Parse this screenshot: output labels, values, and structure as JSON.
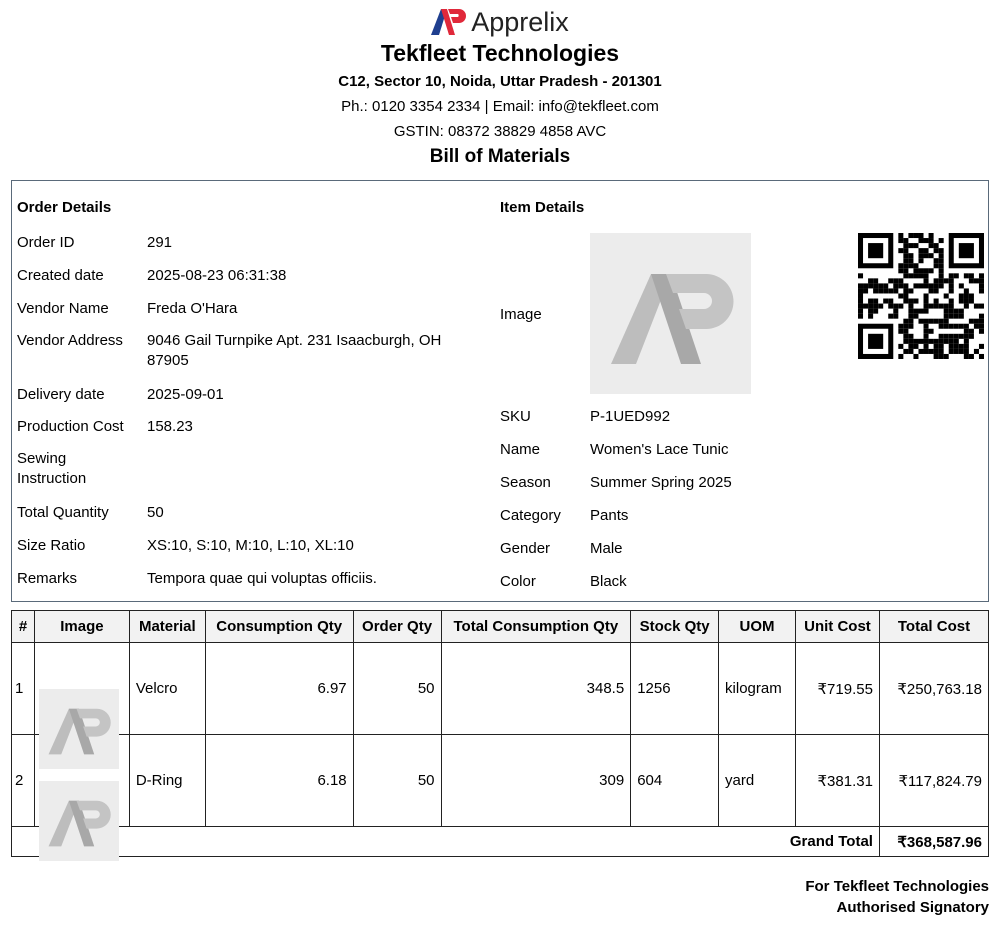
{
  "brand": {
    "logo_text": "Apprelix",
    "colors": {
      "blue": "#1f3f8f",
      "red": "#e0283a"
    }
  },
  "company": {
    "name": "Tekfleet Technologies",
    "address": "C12, Sector 10, Noida, Uttar Pradesh - 201301",
    "contact": "Ph.: 0120 3354 2334 | Email: info@tekfleet.com",
    "gstin": "GSTIN: 08372 38829 4858 AVC"
  },
  "doc_title": "Bill of Materials",
  "order": {
    "heading": "Order Details",
    "fields": [
      {
        "label": "Order ID",
        "value": "291"
      },
      {
        "label": "Created date",
        "value": "2025-08-23 06:31:38"
      },
      {
        "label": "Vendor Name",
        "value": "Freda O'Hara"
      },
      {
        "label": "Vendor Address",
        "value": "9046 Gail Turnpike Apt. 231 Isaacburgh, OH 87905"
      },
      {
        "label": "Delivery date",
        "value": "2025-09-01"
      },
      {
        "label": "Production Cost",
        "value": "158.23"
      },
      {
        "label": "Sewing Instruction",
        "value": ""
      },
      {
        "label": "Total Quantity",
        "value": "50"
      },
      {
        "label": "Size Ratio",
        "value": "XS:10, S:10, M:10, L:10, XL:10"
      },
      {
        "label": "Remarks",
        "value": "Tempora quae qui voluptas officiis."
      }
    ]
  },
  "item": {
    "heading": "Item Details",
    "image_label": "Image",
    "fields": [
      {
        "label": "SKU",
        "value": "P-1UED992"
      },
      {
        "label": "Name",
        "value": "Women's Lace Tunic"
      },
      {
        "label": "Season",
        "value": "Summer Spring 2025"
      },
      {
        "label": "Category",
        "value": "Pants"
      },
      {
        "label": "Gender",
        "value": "Male"
      },
      {
        "label": "Color",
        "value": "Black"
      }
    ]
  },
  "table": {
    "headers": [
      "#",
      "Image",
      "Material",
      "Consumption Qty",
      "Order Qty",
      "Total Consumption Qty",
      "Stock Qty",
      "UOM",
      "Unit Cost",
      "Total Cost"
    ],
    "rows": [
      {
        "n": "1",
        "material": "Velcro",
        "cons": "6.97",
        "order": "50",
        "total_cons": "348.5",
        "stock": "1256",
        "uom": "kilogram",
        "unit": "₹719.55",
        "total": "₹250,763.18"
      },
      {
        "n": "2",
        "material": "D-Ring",
        "cons": "6.18",
        "order": "50",
        "total_cons": "309",
        "stock": "604",
        "uom": "yard",
        "unit": "₹381.31",
        "total": "₹117,824.79"
      }
    ],
    "grand_total_label": "Grand Total",
    "grand_total": "₹368,587.96"
  },
  "footer": {
    "line1": "For Tekfleet Technologies",
    "line2": "Authorised Signatory"
  }
}
